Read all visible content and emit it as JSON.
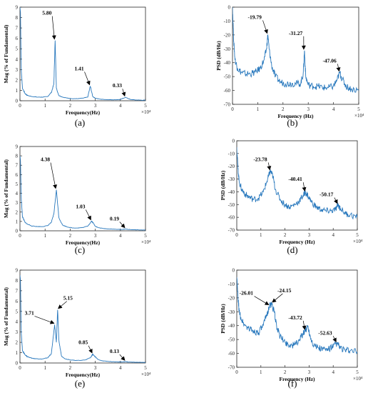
{
  "panels": [
    {
      "caption": "(a)",
      "chart_data": {
        "type": "line",
        "kind": "fft",
        "xlabel": "Frequency(Hz)",
        "ylabel": "Mag (% of Fundamental)",
        "xlim": [
          0,
          5
        ],
        "ylim": [
          0,
          9
        ],
        "x_multiplier": "×10⁴",
        "xticks": [
          "0",
          "1",
          "2",
          "3",
          "4",
          "5"
        ],
        "yticks": [
          "0",
          "1",
          "2",
          "3",
          "4",
          "5",
          "6",
          "7",
          "8",
          "9"
        ],
        "y_tick_values": [
          0,
          1,
          2,
          3,
          4,
          5,
          6,
          7,
          8,
          9
        ],
        "x": [
          0,
          0.02,
          0.05,
          0.1,
          0.2,
          0.3,
          0.5,
          0.7,
          0.9,
          1.1,
          1.25,
          1.35,
          1.4,
          1.45,
          1.55,
          1.7,
          1.9,
          2.1,
          2.3,
          2.5,
          2.7,
          2.8,
          2.9,
          3.0,
          3.2,
          3.4,
          3.6,
          3.8,
          4.0,
          4.2,
          4.4,
          4.6,
          4.8,
          5.0
        ],
        "y": [
          9.0,
          8.5,
          3.0,
          1.2,
          0.7,
          0.5,
          0.4,
          0.35,
          0.35,
          0.4,
          0.8,
          1.6,
          5.8,
          1.2,
          0.5,
          0.35,
          0.25,
          0.2,
          0.2,
          0.25,
          0.35,
          1.41,
          0.4,
          0.25,
          0.15,
          0.12,
          0.1,
          0.1,
          0.12,
          0.33,
          0.12,
          0.08,
          0.06,
          0.05
        ],
        "annotations": [
          {
            "text": "5.80",
            "x": 1.4,
            "y": 5.8
          },
          {
            "text": "1.41",
            "x": 2.8,
            "y": 1.41
          },
          {
            "text": "0.33",
            "x": 4.2,
            "y": 0.33
          }
        ]
      }
    },
    {
      "caption": "(b)",
      "chart_data": {
        "type": "line",
        "kind": "psd",
        "xlabel": "Frequency (Hz)",
        "ylabel": "PSD (dB/Hz)",
        "xlim": [
          0,
          5
        ],
        "ylim": [
          -70,
          0
        ],
        "x_multiplier": "×10⁴",
        "xticks": [
          "0",
          "1",
          "2",
          "3",
          "4",
          "5"
        ],
        "yticks": [
          "-70",
          "-60",
          "-50",
          "-40",
          "-30",
          "-20",
          "-10",
          "0"
        ],
        "y_tick_values": [
          -70,
          -60,
          -50,
          -40,
          -30,
          -20,
          -10,
          0
        ],
        "x": [
          0,
          0.05,
          0.1,
          0.2,
          0.35,
          0.5,
          0.7,
          0.9,
          1.1,
          1.25,
          1.35,
          1.4,
          1.45,
          1.55,
          1.7,
          1.9,
          2.1,
          2.3,
          2.5,
          2.7,
          2.8,
          2.85,
          2.9,
          3.0,
          3.2,
          3.4,
          3.6,
          3.8,
          4.0,
          4.15,
          4.25,
          4.35,
          4.5,
          4.7,
          5.0
        ],
        "y": [
          0,
          -25,
          -38,
          -44,
          -47,
          -48,
          -48,
          -47,
          -44,
          -38,
          -30,
          -19.79,
          -30,
          -42,
          -50,
          -54,
          -55,
          -55,
          -55,
          -55,
          -48,
          -31.27,
          -50,
          -56,
          -57,
          -57,
          -58,
          -58,
          -57,
          -52,
          -47.06,
          -52,
          -57,
          -59,
          -60
        ],
        "annotations": [
          {
            "text": "-19.79",
            "x": 1.4,
            "y": -19.79
          },
          {
            "text": "-31.27",
            "x": 2.85,
            "y": -31.27
          },
          {
            "text": "-47.06",
            "x": 4.25,
            "y": -47.06
          }
        ]
      }
    },
    {
      "caption": "(c)",
      "chart_data": {
        "type": "line",
        "kind": "fft",
        "xlabel": "Frequency(Hz)",
        "ylabel": "Mag (% of Fundamental)",
        "xlim": [
          0,
          5
        ],
        "ylim": [
          0,
          9
        ],
        "x_multiplier": "×10⁴",
        "xticks": [
          "0",
          "1",
          "2",
          "3",
          "4",
          "5"
        ],
        "yticks": [
          "0",
          "1",
          "2",
          "3",
          "4",
          "5",
          "6",
          "7",
          "8",
          "9"
        ],
        "y_tick_values": [
          0,
          1,
          2,
          3,
          4,
          5,
          6,
          7,
          8,
          9
        ],
        "x": [
          0,
          0.02,
          0.05,
          0.1,
          0.2,
          0.3,
          0.5,
          0.7,
          0.9,
          1.1,
          1.25,
          1.35,
          1.45,
          1.55,
          1.7,
          1.9,
          2.1,
          2.3,
          2.5,
          2.7,
          2.85,
          2.9,
          3.0,
          3.1,
          3.3,
          3.5,
          3.7,
          3.9,
          4.1,
          4.2,
          4.3,
          4.5,
          4.7,
          5.0
        ],
        "y": [
          8.0,
          7.5,
          3.5,
          1.5,
          0.9,
          0.7,
          0.5,
          0.45,
          0.45,
          0.55,
          0.9,
          1.8,
          4.38,
          1.4,
          0.6,
          0.4,
          0.3,
          0.3,
          0.35,
          0.5,
          1.03,
          0.9,
          0.5,
          0.35,
          0.25,
          0.2,
          0.18,
          0.15,
          0.15,
          0.19,
          0.15,
          0.12,
          0.1,
          0.08
        ],
        "annotations": [
          {
            "text": "4.38",
            "x": 1.45,
            "y": 4.38
          },
          {
            "text": "1.03",
            "x": 2.85,
            "y": 1.03
          },
          {
            "text": "0.19",
            "x": 4.2,
            "y": 0.19
          }
        ]
      }
    },
    {
      "caption": "(d)",
      "chart_data": {
        "type": "line",
        "kind": "psd",
        "xlabel": "Frequency (Hz)",
        "ylabel": "PSD (dB/Hz)",
        "xlim": [
          0,
          5
        ],
        "ylim": [
          -70,
          0
        ],
        "x_multiplier": "×10⁴",
        "xticks": [
          "0",
          "1",
          "2",
          "3",
          "4",
          "5"
        ],
        "yticks": [
          "-70",
          "-60",
          "-50",
          "-40",
          "-30",
          "-20",
          "-10",
          "0"
        ],
        "y_tick_values": [
          -70,
          -60,
          -50,
          -40,
          -30,
          -20,
          -10,
          0
        ],
        "x": [
          0,
          0.05,
          0.1,
          0.2,
          0.35,
          0.5,
          0.7,
          0.9,
          1.1,
          1.25,
          1.35,
          1.4,
          1.5,
          1.6,
          1.8,
          2.0,
          2.2,
          2.4,
          2.6,
          2.75,
          2.85,
          2.95,
          3.1,
          3.3,
          3.5,
          3.7,
          3.9,
          4.1,
          4.2,
          4.3,
          4.5,
          4.7,
          5.0
        ],
        "y": [
          -5,
          -22,
          -32,
          -38,
          -42,
          -44,
          -46,
          -45,
          -40,
          -32,
          -26,
          -23.78,
          -28,
          -38,
          -46,
          -50,
          -52,
          -50,
          -47,
          -43,
          -40.41,
          -43,
          -48,
          -52,
          -54,
          -55,
          -55,
          -54,
          -50.17,
          -53,
          -57,
          -58,
          -60
        ],
        "annotations": [
          {
            "text": "-23.78",
            "x": 1.4,
            "y": -23.78
          },
          {
            "text": "-40.41",
            "x": 2.85,
            "y": -40.41
          },
          {
            "text": "-50.17",
            "x": 4.2,
            "y": -50.17
          }
        ]
      }
    },
    {
      "caption": "(e)",
      "chart_data": {
        "type": "line",
        "kind": "fft",
        "xlabel": "Frequency(Hz)",
        "ylabel": "Mag (% of Fundamental)",
        "xlim": [
          0,
          5
        ],
        "ylim": [
          0,
          9
        ],
        "x_multiplier": "×10⁴",
        "xticks": [
          "0",
          "1",
          "2",
          "3",
          "4",
          "5"
        ],
        "yticks": [
          "0",
          "1",
          "2",
          "3",
          "4",
          "5",
          "6",
          "7",
          "8",
          "9"
        ],
        "y_tick_values": [
          0,
          1,
          2,
          3,
          4,
          5,
          6,
          7,
          8,
          9
        ],
        "x": [
          0,
          0.02,
          0.05,
          0.1,
          0.2,
          0.3,
          0.5,
          0.7,
          0.9,
          1.1,
          1.25,
          1.38,
          1.45,
          1.5,
          1.55,
          1.65,
          1.8,
          2.0,
          2.2,
          2.4,
          2.6,
          2.8,
          2.9,
          3.0,
          3.1,
          3.3,
          3.5,
          3.7,
          3.9,
          4.1,
          4.2,
          4.3,
          4.5,
          4.7,
          5.0
        ],
        "y": [
          8.5,
          8.0,
          3.0,
          1.2,
          0.8,
          0.6,
          0.45,
          0.4,
          0.4,
          0.5,
          0.9,
          3.71,
          2.0,
          5.15,
          2.2,
          0.7,
          0.4,
          0.3,
          0.25,
          0.25,
          0.3,
          0.5,
          0.85,
          0.6,
          0.35,
          0.2,
          0.15,
          0.12,
          0.1,
          0.1,
          0.13,
          0.1,
          0.08,
          0.06,
          0.05
        ],
        "annotations": [
          {
            "text": "3.71",
            "x": 1.38,
            "y": 3.71
          },
          {
            "text": "5.15",
            "x": 1.5,
            "y": 5.15
          },
          {
            "text": "0.85",
            "x": 2.9,
            "y": 0.85
          },
          {
            "text": "0.13",
            "x": 4.2,
            "y": 0.13
          }
        ]
      }
    },
    {
      "caption": "(f)",
      "chart_data": {
        "type": "line",
        "kind": "psd",
        "xlabel": "Frequency (Hz)",
        "ylabel": "PSD (dB/Hz)",
        "xlim": [
          0,
          5
        ],
        "ylim": [
          -70,
          0
        ],
        "x_multiplier": "×10⁴",
        "xticks": [
          "0",
          "1",
          "2",
          "3",
          "4",
          "5"
        ],
        "yticks": [
          "-70",
          "-60",
          "-50",
          "-40",
          "-30",
          "-20",
          "-10",
          "0"
        ],
        "y_tick_values": [
          -70,
          -60,
          -50,
          -40,
          -30,
          -20,
          -10,
          0
        ],
        "x": [
          0,
          0.05,
          0.1,
          0.2,
          0.35,
          0.5,
          0.7,
          0.9,
          1.1,
          1.25,
          1.35,
          1.45,
          1.55,
          1.65,
          1.8,
          2.0,
          2.2,
          2.4,
          2.6,
          2.75,
          2.85,
          2.95,
          3.05,
          3.2,
          3.4,
          3.6,
          3.8,
          4.0,
          4.15,
          4.3,
          4.5,
          4.7,
          5.0
        ],
        "y": [
          -5,
          -20,
          -30,
          -36,
          -40,
          -42,
          -44,
          -45,
          -40,
          -32,
          -26.01,
          -24.15,
          -30,
          -40,
          -48,
          -52,
          -54,
          -54,
          -50,
          -46,
          -43.72,
          -40,
          -48,
          -54,
          -56,
          -57,
          -57,
          -55,
          -52.63,
          -56,
          -58,
          -58,
          -59
        ],
        "annotations": [
          {
            "text": "-26.01",
            "x": 1.35,
            "y": -26.01
          },
          {
            "text": "-24.15",
            "x": 1.45,
            "y": -24.15
          },
          {
            "text": "-43.72",
            "x": 2.85,
            "y": -43.72
          },
          {
            "text": "-52.63",
            "x": 4.15,
            "y": -52.63
          }
        ]
      }
    }
  ],
  "colors": {
    "line": "#2878bd",
    "axis": "#262626",
    "text": "#000000"
  }
}
